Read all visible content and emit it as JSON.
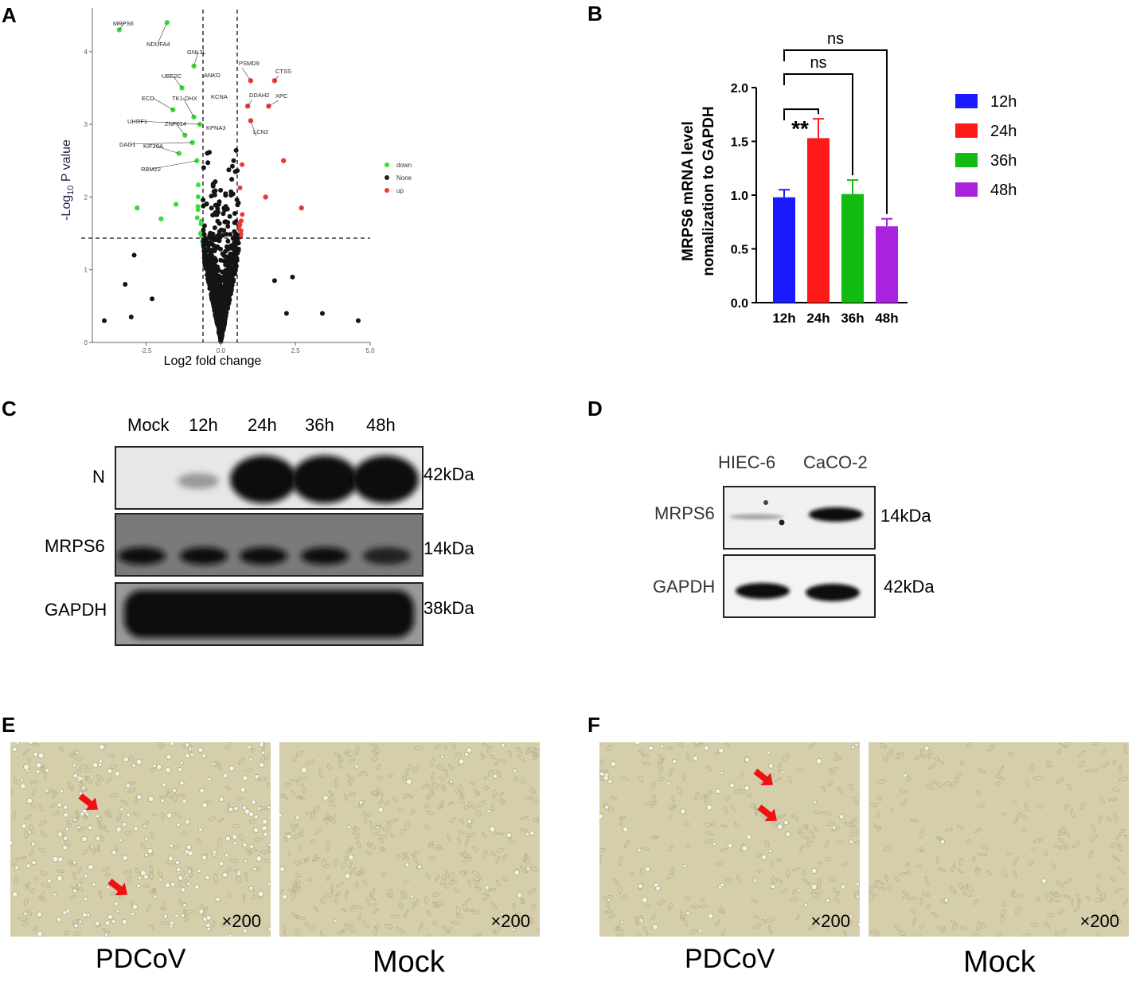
{
  "panels": {
    "A": "A",
    "B": "B",
    "C": "C",
    "D": "D",
    "E": "E",
    "F": "F"
  },
  "volcano": {
    "xlabel": "Log2 fold change",
    "ylabel_pre": "-Log",
    "ylabel_sub": "10",
    "ylabel_post": " P value",
    "x_ticks": [
      "-2.5",
      "0.0",
      "2.5",
      "5.0"
    ],
    "y_ticks": [
      "0",
      "1",
      "2",
      "3",
      "4"
    ],
    "legend": [
      {
        "label": "down",
        "color": "#3ddc3d"
      },
      {
        "label": "None",
        "color": "#222222"
      },
      {
        "label": "up",
        "color": "#e83a3a"
      }
    ],
    "genes_down": [
      "MRPS6",
      "NDUFA4",
      "GNL3L",
      "UBE2C",
      "ECD",
      "TK1",
      "UHRF1",
      "ZNF614",
      "DAG1",
      "KIF20A",
      "RBM22"
    ],
    "genes_mid": [
      "ANKD",
      "DHX",
      "KCNA",
      "KPNA3"
    ],
    "genes_up": [
      "PSMD9",
      "CTSS",
      "XPC",
      "DDAH2",
      "LCN2"
    ]
  },
  "bar_chart": {
    "ylabel_line1": "MRPS6 mRNA level",
    "ylabel_line2": "nomalization to GAPDH",
    "legend": [
      "12h",
      "24h",
      "36h",
      "48h"
    ],
    "significance": [
      "**",
      "ns",
      "ns"
    ]
  },
  "chart_data": [
    {
      "type": "scatter",
      "title": "",
      "xlabel": "Log2 fold change",
      "ylabel": "-Log10 P value",
      "xlim": [
        -4.3,
        5.0
      ],
      "ylim": [
        0,
        4.6
      ],
      "thresholds": {
        "x": [
          -0.58,
          0.58
        ],
        "y": 1.3
      },
      "series": [
        {
          "name": "down",
          "color": "#3ddc3d",
          "points": [
            [
              -3.4,
              4.3
            ],
            [
              -1.8,
              4.4
            ],
            [
              -0.9,
              3.8
            ],
            [
              -1.3,
              3.5
            ],
            [
              -1.6,
              3.2
            ],
            [
              -0.9,
              3.1
            ],
            [
              -0.7,
              3.0
            ],
            [
              -1.2,
              2.85
            ],
            [
              -0.95,
              2.75
            ],
            [
              -1.4,
              2.6
            ],
            [
              -0.8,
              2.5
            ],
            [
              -2.8,
              1.85
            ],
            [
              -2.0,
              1.7
            ],
            [
              -1.5,
              1.9
            ]
          ]
        },
        {
          "name": "up",
          "color": "#e83a3a",
          "points": [
            [
              1.0,
              3.6
            ],
            [
              1.8,
              3.6
            ],
            [
              1.6,
              3.25
            ],
            [
              0.9,
              3.25
            ],
            [
              1.0,
              3.05
            ],
            [
              2.1,
              2.5
            ],
            [
              2.7,
              1.85
            ],
            [
              1.5,
              2.0
            ]
          ]
        }
      ]
    },
    {
      "type": "bar",
      "title": "",
      "categories": [
        "12h",
        "24h",
        "36h",
        "48h"
      ],
      "values": [
        0.98,
        1.53,
        1.01,
        0.71
      ],
      "errors": [
        0.07,
        0.18,
        0.13,
        0.07
      ],
      "colors": [
        "#1a1aff",
        "#ff1a1a",
        "#11bb11",
        "#aa22dd"
      ],
      "ylabel": "MRPS6 mRNA level nomalization to GAPDH",
      "ylim": [
        0,
        2.0
      ],
      "y_ticks": [
        "0.0",
        "0.5",
        "1.0",
        "1.5",
        "2.0"
      ],
      "comparisons": [
        {
          "from": "12h",
          "to": "24h",
          "label": "**"
        },
        {
          "from": "12h",
          "to": "36h",
          "label": "ns"
        },
        {
          "from": "12h",
          "to": "48h",
          "label": "ns"
        }
      ]
    }
  ],
  "western_c": {
    "lanes": [
      "Mock",
      "12h",
      "24h",
      "36h",
      "48h"
    ],
    "rows": [
      {
        "label": "N",
        "kda": "42kDa"
      },
      {
        "label": "MRPS6",
        "kda": "14kDa"
      },
      {
        "label": "GAPDH",
        "kda": "38kDa"
      }
    ]
  },
  "western_d": {
    "lanes": [
      "HIEC-6",
      "CaCO-2"
    ],
    "rows": [
      {
        "label": "MRPS6",
        "kda": "14kDa"
      },
      {
        "label": "GAPDH",
        "kda": "42kDa"
      }
    ]
  },
  "micrographs": {
    "E": [
      {
        "caption": "PDCoV",
        "mag": "×200"
      },
      {
        "caption": "Mock",
        "mag": "×200"
      }
    ],
    "F": [
      {
        "caption": "PDCoV",
        "mag": "×200"
      },
      {
        "caption": "Mock",
        "mag": "×200"
      }
    ]
  }
}
